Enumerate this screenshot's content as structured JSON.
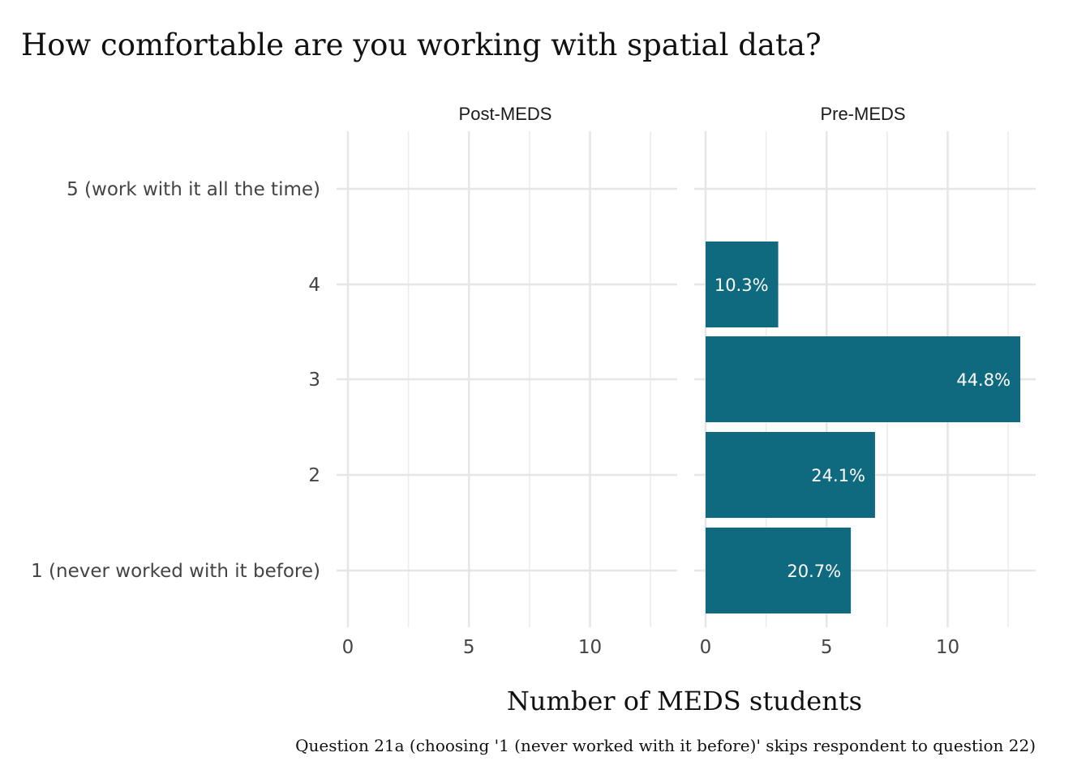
{
  "chart_data": {
    "type": "bar",
    "orientation": "horizontal",
    "title": "How comfortable are you working with spatial data?",
    "xlabel": "Number of MEDS students",
    "ylabel": "",
    "caption": "Question 21a (choosing '1 (never worked with it before)' skips respondent to question 22)",
    "categories": [
      "1 (never worked with it before)",
      "2",
      "3",
      "4",
      "5 (work with it all the time)"
    ],
    "xlim": [
      0,
      13.7
    ],
    "xticks": [
      0,
      5,
      10
    ],
    "grid": true,
    "bar_color": "#106a7f",
    "panels": [
      {
        "name": "Post-MEDS",
        "values": [
          0,
          0,
          0,
          0,
          0
        ],
        "labels": [
          "",
          "",
          "",
          "",
          ""
        ]
      },
      {
        "name": "Pre-MEDS",
        "values": [
          6,
          7,
          13,
          3,
          0
        ],
        "labels": [
          "20.7%",
          "24.1%",
          "44.8%",
          "10.3%",
          ""
        ]
      }
    ]
  }
}
